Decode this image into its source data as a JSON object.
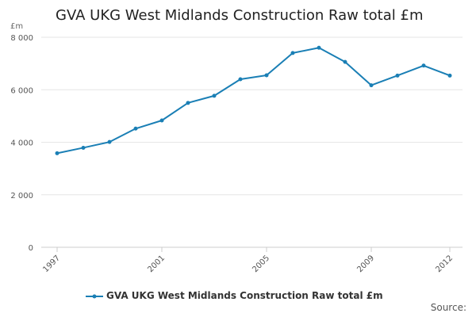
{
  "chart_data": {
    "type": "line",
    "title": "GVA UKG West Midlands Construction Raw total £m",
    "unit_label": "£m",
    "xlabel": "",
    "ylabel": "",
    "x": [
      1997,
      1998,
      1999,
      2000,
      2001,
      2002,
      2003,
      2004,
      2005,
      2006,
      2007,
      2008,
      2009,
      2010,
      2011,
      2012
    ],
    "x_tick_values": [
      1997,
      2001,
      2005,
      2009,
      2012
    ],
    "x_tick_labels": [
      "1997",
      "2001",
      "2005",
      "2009",
      "2012"
    ],
    "y_tick_values": [
      0,
      2000,
      4000,
      6000,
      8000
    ],
    "y_tick_labels": [
      "0",
      "2 000",
      "4 000",
      "6 000",
      "8 000"
    ],
    "xlim": [
      1997,
      2012
    ],
    "ylim": [
      0,
      8000
    ],
    "grid": "horizontal",
    "legend_position": "bottom",
    "series": [
      {
        "name": "GVA UKG West Midlands Construction Raw total £m",
        "color": "#1a7fb5",
        "values": [
          3580,
          3790,
          4010,
          4520,
          4830,
          5500,
          5770,
          6400,
          6550,
          7400,
          7600,
          7060,
          6170,
          6540,
          6920,
          6540
        ]
      }
    ]
  },
  "footer": {
    "source_label": "Source:"
  }
}
